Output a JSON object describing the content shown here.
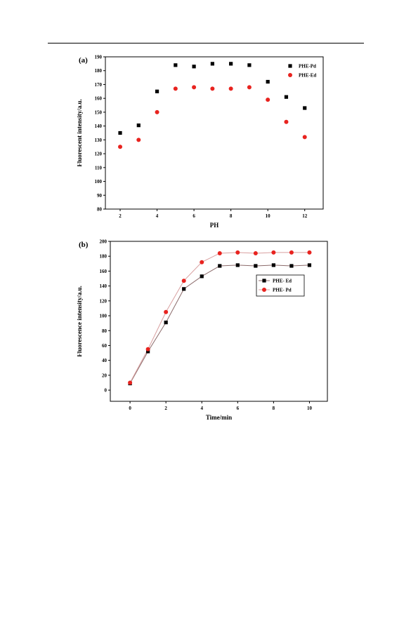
{
  "chart_data": [
    {
      "type": "scatter",
      "panel_label": "(a)",
      "xlabel": "PH",
      "ylabel": "Fluorescent intensity/a.u.",
      "xlim": [
        1.2,
        13.0
      ],
      "ylim": [
        80,
        190
      ],
      "xticks": [
        2,
        4,
        6,
        8,
        10,
        12
      ],
      "yticks": [
        80,
        90,
        100,
        110,
        120,
        130,
        140,
        150,
        160,
        170,
        180,
        190
      ],
      "legend_position": "top-right",
      "grid": false,
      "series": [
        {
          "name": "PHE-Pd",
          "marker": "square",
          "color": "#000000",
          "line": false,
          "x": [
            2,
            3,
            4,
            5,
            6,
            7,
            8,
            9,
            10,
            11,
            12
          ],
          "y": [
            135,
            140.5,
            165,
            184,
            183,
            185,
            185,
            184,
            172,
            161,
            153
          ]
        },
        {
          "name": "PHE-Ed",
          "marker": "circle",
          "color": "#e8231f",
          "line": false,
          "x": [
            2,
            3,
            4,
            5,
            6,
            7,
            8,
            9,
            10,
            11,
            12
          ],
          "y": [
            125,
            130,
            150,
            167,
            168,
            167,
            167,
            168,
            159,
            143,
            132
          ]
        }
      ]
    },
    {
      "type": "line",
      "panel_label": "(b)",
      "xlabel": "Time/min",
      "ylabel": "Fluorescence intensity/a.u.",
      "xlim": [
        -1.1,
        11.0
      ],
      "ylim": [
        -15,
        200
      ],
      "xticks": [
        0,
        2,
        4,
        6,
        8,
        10
      ],
      "yticks": [
        0,
        20,
        40,
        60,
        80,
        100,
        120,
        140,
        160,
        180,
        200
      ],
      "legend_position": "center-right",
      "grid": false,
      "series": [
        {
          "name": "PHE- Ed",
          "marker": "square",
          "color": "#000000",
          "line_color": "#8c6b6b",
          "line": true,
          "x": [
            0,
            1,
            2,
            3,
            4,
            5,
            6,
            7,
            8,
            9,
            10
          ],
          "y": [
            9,
            52,
            91,
            136,
            153,
            167,
            168,
            167,
            168,
            167,
            168
          ]
        },
        {
          "name": "PHE- Pd",
          "marker": "circle",
          "color": "#e8231f",
          "line_color": "#d9a0a0",
          "line": true,
          "x": [
            0,
            1,
            2,
            3,
            4,
            5,
            6,
            7,
            8,
            9,
            10
          ],
          "y": [
            10,
            55,
            105,
            147,
            172,
            184,
            185,
            184,
            185,
            185,
            185
          ]
        }
      ]
    }
  ]
}
